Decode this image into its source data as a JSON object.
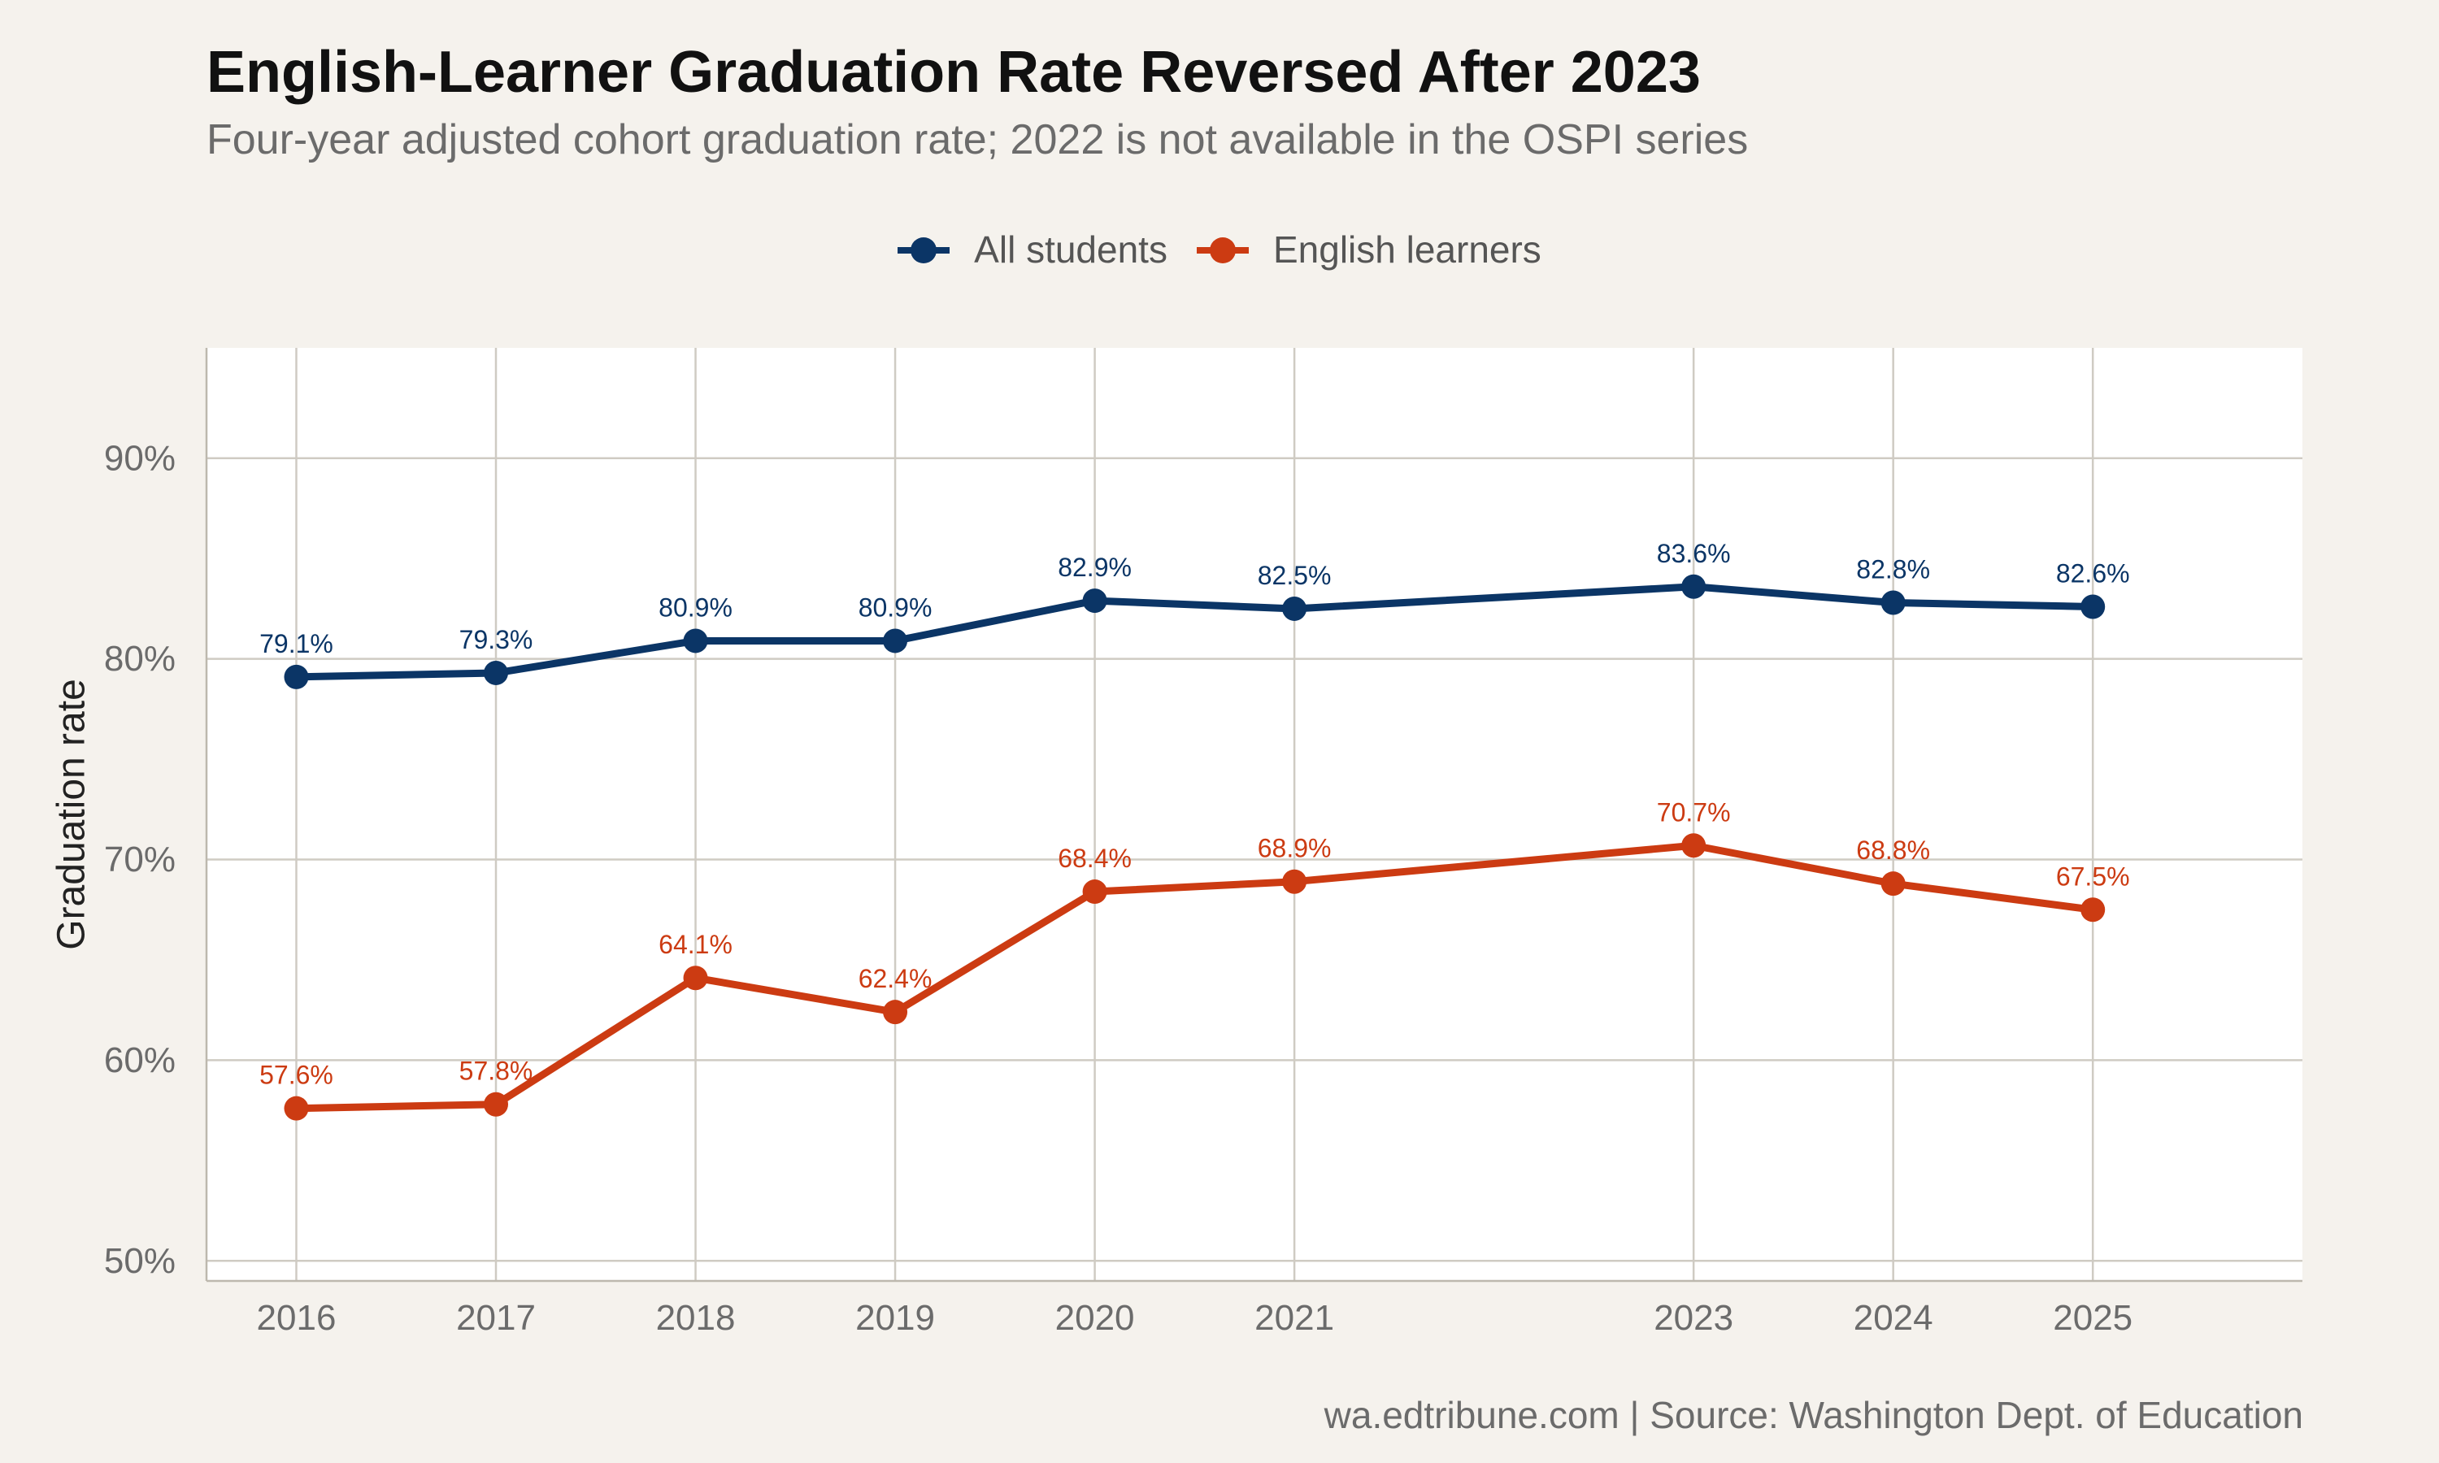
{
  "title": "English-Learner Graduation Rate Reversed After 2023",
  "subtitle": "Four-year adjusted cohort graduation rate; 2022 is not available in the OSPI series",
  "caption": "wa.edtribune.com | Source: Washington Dept. of Education",
  "colors": {
    "all_students": "#0b3566",
    "english_learners": "#cc3b12",
    "grid": "#cfcbc3",
    "panel": "#ffffff",
    "background": "#f5f2ed"
  },
  "chart_data": {
    "type": "line",
    "title": "English-Learner Graduation Rate Reversed After 2023",
    "xlabel": "",
    "ylabel": "Graduation rate",
    "x": [
      2016,
      2017,
      2018,
      2019,
      2020,
      2021,
      2023,
      2024,
      2025
    ],
    "x_tick_labels": [
      "2016",
      "2017",
      "2018",
      "2019",
      "2020",
      "2021",
      "2023",
      "2024",
      "2025"
    ],
    "xlim": [
      2015.55,
      2026.05
    ],
    "ylim": [
      49,
      95.5
    ],
    "y_ticks": [
      50,
      60,
      70,
      80,
      90
    ],
    "y_tick_labels": [
      "50%",
      "60%",
      "70%",
      "80%",
      "90%"
    ],
    "grid": true,
    "legend_position": "top",
    "series": [
      {
        "name": "All students",
        "color": "#0b3566",
        "values": [
          79.1,
          79.3,
          80.9,
          80.9,
          82.9,
          82.5,
          83.6,
          82.8,
          82.6
        ],
        "labels": [
          "79.1%",
          "79.3%",
          "80.9%",
          "80.9%",
          "82.9%",
          "82.5%",
          "83.6%",
          "82.8%",
          "82.6%"
        ]
      },
      {
        "name": "English learners",
        "color": "#cc3b12",
        "values": [
          57.6,
          57.8,
          64.1,
          62.4,
          68.4,
          68.9,
          70.7,
          68.8,
          67.5
        ],
        "labels": [
          "57.6%",
          "57.8%",
          "64.1%",
          "62.4%",
          "68.4%",
          "68.9%",
          "70.7%",
          "68.8%",
          "67.5%"
        ]
      }
    ]
  }
}
